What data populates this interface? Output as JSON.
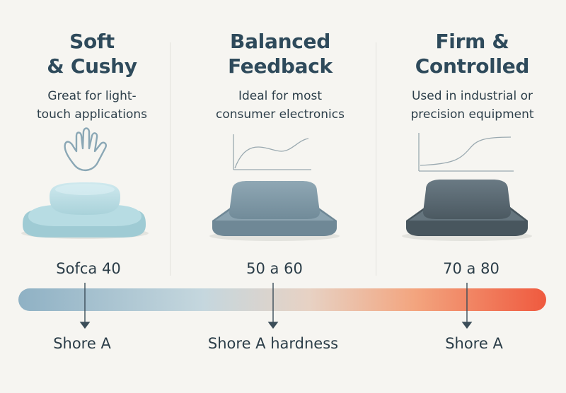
{
  "columns": [
    {
      "title_line1": "Soft",
      "title_line2": "& Cushy",
      "subtitle_line1": "Great for light-",
      "subtitle_line2": "touch applications",
      "range": "Sofca 40",
      "shore": "Shore A",
      "icon": "hand-icon",
      "color": "#b9dde3"
    },
    {
      "title_line1": "Balanced",
      "title_line2": "Feedback",
      "subtitle_line1": "Ideal for most",
      "subtitle_line2": "consumer electronics",
      "range": "50 a 60",
      "shore": "Shore A hardness",
      "icon": "curve-graph-icon",
      "color": "#7f98a6"
    },
    {
      "title_line1": "Firm &",
      "title_line2": "Controlled",
      "subtitle_line1": "Used in industrial or",
      "subtitle_line2": "precision equipment",
      "range": "70 a 80",
      "shore": "Shore A",
      "icon": "step-graph-icon",
      "color": "#55656e"
    }
  ],
  "gradient": {
    "start": "#8fb1c4",
    "mid": "#c9d9df",
    "end": "#ef5a3f"
  }
}
